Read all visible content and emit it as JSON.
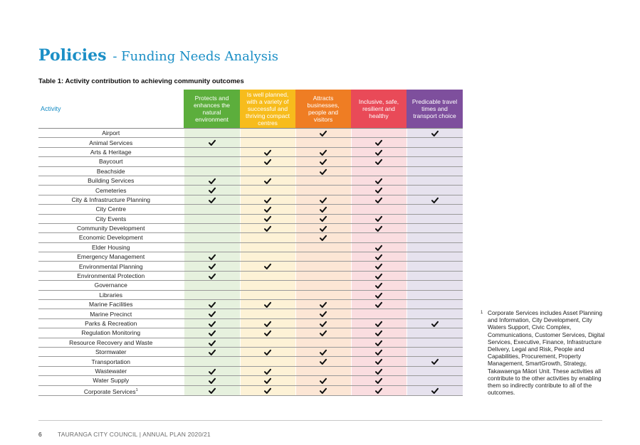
{
  "page": {
    "title_main": "Policies",
    "title_sub": "- Funding Needs Analysis",
    "table_caption": "Table 1: Activity contribution to achieving community outcomes"
  },
  "table": {
    "activity_header": "Activity",
    "outcomes": [
      {
        "label": "Protects and enhances the natural environment",
        "header_color": "#5cae3c",
        "cell_color": "#e6f1de"
      },
      {
        "label": "Is well planned, with a variety of successful and thriving compact centres",
        "header_color": "#f7bc1c",
        "cell_color": "#fdf2d6"
      },
      {
        "label": "Attracts businesses, people and visitors",
        "header_color": "#ef7d23",
        "cell_color": "#fce6d5"
      },
      {
        "label": "Inclusive, safe, resilient and healthy",
        "header_color": "#e94a58",
        "cell_color": "#fadde0"
      },
      {
        "label": "Predicable travel times and transport choice",
        "header_color": "#7e4f9d",
        "cell_color": "#e6e2ee"
      }
    ],
    "tick_icon": "check-icon",
    "rows": [
      {
        "name": "Airport",
        "sup": "",
        "marks": [
          0,
          0,
          1,
          0,
          1
        ]
      },
      {
        "name": "Animal Services",
        "sup": "",
        "marks": [
          1,
          0,
          0,
          1,
          0
        ]
      },
      {
        "name": "Arts & Heritage",
        "sup": "",
        "marks": [
          0,
          1,
          1,
          1,
          0
        ]
      },
      {
        "name": "Baycourt",
        "sup": "",
        "marks": [
          0,
          1,
          1,
          1,
          0
        ]
      },
      {
        "name": "Beachside",
        "sup": "",
        "marks": [
          0,
          0,
          1,
          0,
          0
        ]
      },
      {
        "name": "Building Services",
        "sup": "",
        "marks": [
          1,
          1,
          0,
          1,
          0
        ]
      },
      {
        "name": "Cemeteries",
        "sup": "",
        "marks": [
          1,
          0,
          0,
          1,
          0
        ]
      },
      {
        "name": "City & Infrastructure Planning",
        "sup": "",
        "marks": [
          1,
          1,
          1,
          1,
          1
        ]
      },
      {
        "name": "City Centre",
        "sup": "",
        "marks": [
          0,
          1,
          1,
          0,
          0
        ]
      },
      {
        "name": "City Events",
        "sup": "",
        "marks": [
          0,
          1,
          1,
          1,
          0
        ]
      },
      {
        "name": "Community Development",
        "sup": "",
        "marks": [
          0,
          1,
          1,
          1,
          0
        ]
      },
      {
        "name": "Economic Development",
        "sup": "",
        "marks": [
          0,
          0,
          1,
          0,
          0
        ]
      },
      {
        "name": "Elder Housing",
        "sup": "",
        "marks": [
          0,
          0,
          0,
          1,
          0
        ]
      },
      {
        "name": "Emergency Management",
        "sup": "",
        "marks": [
          1,
          0,
          0,
          1,
          0
        ]
      },
      {
        "name": "Environmental Planning",
        "sup": "",
        "marks": [
          1,
          1,
          0,
          1,
          0
        ]
      },
      {
        "name": "Environmental Protection",
        "sup": "",
        "marks": [
          1,
          0,
          0,
          1,
          0
        ]
      },
      {
        "name": "Governance",
        "sup": "",
        "marks": [
          0,
          0,
          0,
          1,
          0
        ]
      },
      {
        "name": "Libraries",
        "sup": "",
        "marks": [
          0,
          0,
          0,
          1,
          0
        ]
      },
      {
        "name": "Marine Facilities",
        "sup": "",
        "marks": [
          1,
          1,
          1,
          1,
          0
        ]
      },
      {
        "name": "Marine Precinct",
        "sup": "",
        "marks": [
          1,
          0,
          1,
          0,
          0
        ]
      },
      {
        "name": "Parks & Recreation",
        "sup": "",
        "marks": [
          1,
          1,
          1,
          1,
          1
        ]
      },
      {
        "name": "Regulation Monitoring",
        "sup": "",
        "marks": [
          1,
          1,
          1,
          1,
          0
        ]
      },
      {
        "name": "Resource Recovery and Waste",
        "sup": "",
        "marks": [
          1,
          0,
          0,
          1,
          0
        ]
      },
      {
        "name": "Stormwater",
        "sup": "",
        "marks": [
          1,
          1,
          1,
          1,
          0
        ]
      },
      {
        "name": "Transportation",
        "sup": "",
        "marks": [
          0,
          0,
          1,
          1,
          1
        ]
      },
      {
        "name": "Wastewater",
        "sup": "",
        "marks": [
          1,
          1,
          0,
          1,
          0
        ]
      },
      {
        "name": "Water Supply",
        "sup": "",
        "marks": [
          1,
          1,
          1,
          1,
          0
        ]
      },
      {
        "name": "Corporate Services",
        "sup": "1",
        "marks": [
          1,
          1,
          1,
          1,
          1
        ]
      }
    ]
  },
  "footnote": {
    "marker": "1",
    "text": "Corporate Services includes Asset Planning and Information, City Development, City Waters Support, Civic Complex, Communications, Customer Services, Digital Services, Executive, Finance, Infrastructure Delivery, Legal and Risk, People and Capabilities, Procurement, Property Management, SmartGrowth, Strategy, Takawaenga Māori Unit. These activities all contribute to the other activities by enabling them so indirectly contribute to all of the outcomes."
  },
  "footer": {
    "page_number": "6",
    "text": "TAURANGA CITY COUNCIL  |  ANNUAL PLAN 2020/21"
  }
}
